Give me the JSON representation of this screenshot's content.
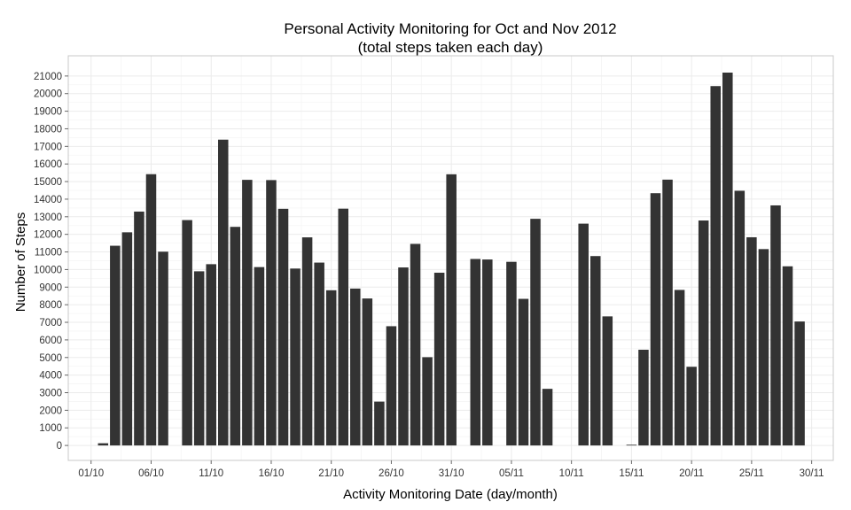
{
  "chart_data": {
    "type": "bar",
    "title": "Personal Activity Monitoring for Oct and Nov 2012",
    "subtitle": "(total steps taken each day)",
    "xlabel": "Activity Monitoring Date (day/month)",
    "ylabel": "Number of Steps",
    "ylim": [
      -850,
      22150
    ],
    "y_ticks": [
      0,
      1000,
      2000,
      3000,
      4000,
      5000,
      6000,
      7000,
      8000,
      9000,
      10000,
      11000,
      12000,
      13000,
      14000,
      15000,
      16000,
      17000,
      18000,
      19000,
      20000,
      21000
    ],
    "x_ticks": [
      {
        "label": "01/10",
        "day": 1
      },
      {
        "label": "06/10",
        "day": 6
      },
      {
        "label": "11/10",
        "day": 11
      },
      {
        "label": "16/10",
        "day": 16
      },
      {
        "label": "21/10",
        "day": 21
      },
      {
        "label": "26/10",
        "day": 26
      },
      {
        "label": "31/10",
        "day": 31
      },
      {
        "label": "05/11",
        "day": 36
      },
      {
        "label": "10/11",
        "day": 41
      },
      {
        "label": "15/11",
        "day": 46
      },
      {
        "label": "20/11",
        "day": 51
      },
      {
        "label": "25/11",
        "day": 56
      },
      {
        "label": "30/11",
        "day": 61
      }
    ],
    "x_range": [
      -0.9,
      62.8
    ],
    "days": [
      1,
      2,
      3,
      4,
      5,
      6,
      7,
      8,
      9,
      10,
      11,
      12,
      13,
      14,
      15,
      16,
      17,
      18,
      19,
      20,
      21,
      22,
      23,
      24,
      25,
      26,
      27,
      28,
      29,
      30,
      31,
      32,
      33,
      34,
      35,
      36,
      37,
      38,
      39,
      40,
      41,
      42,
      43,
      44,
      45,
      46,
      47,
      48,
      49,
      50,
      51,
      52,
      53,
      54,
      55,
      56,
      57,
      58,
      59,
      60,
      61
    ],
    "values": [
      0,
      126,
      11352,
      12116,
      13294,
      15420,
      11015,
      0,
      12811,
      9900,
      10304,
      17382,
      12426,
      15098,
      10139,
      15084,
      13452,
      10056,
      11829,
      10395,
      8821,
      13460,
      8918,
      8355,
      2492,
      6778,
      10119,
      11458,
      5018,
      9819,
      15414,
      0,
      10600,
      10571,
      0,
      10439,
      8334,
      12883,
      3219,
      0,
      0,
      12608,
      10765,
      7336,
      0,
      41,
      5441,
      14339,
      15110,
      8841,
      4472,
      12787,
      20427,
      21194,
      14478,
      11834,
      11162,
      13646,
      10183,
      7047,
      0
    ],
    "bar_color": "#333333",
    "panel_border": "#c8c8c8",
    "grid_major_color": "#ebebeb",
    "grid_minor_color": "#f5f5f5",
    "grid": true
  }
}
